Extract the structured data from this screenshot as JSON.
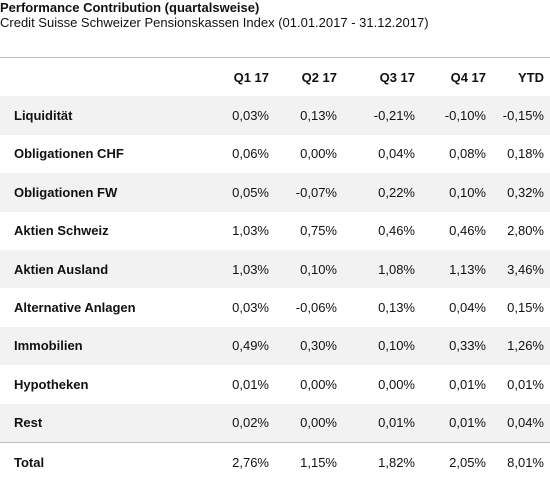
{
  "chart_data": {
    "type": "table",
    "title": "Performance Contribution (quartalsweise)",
    "subtitle": "Credit Suisse Schweizer Pensionskassen Index (01.01.2017 - 31.12.2017)",
    "columns": [
      "Q1 17",
      "Q2 17",
      "Q3 17",
      "Q4 17",
      "YTD"
    ],
    "rows": [
      {
        "label": "Liquidität",
        "values": [
          "0,03%",
          "0,13%",
          "-0,21%",
          "-0,10%",
          "-0,15%"
        ]
      },
      {
        "label": "Obligationen CHF",
        "values": [
          "0,06%",
          "0,00%",
          "0,04%",
          "0,08%",
          "0,18%"
        ]
      },
      {
        "label": "Obligationen FW",
        "values": [
          "0,05%",
          "-0,07%",
          "0,22%",
          "0,10%",
          "0,32%"
        ]
      },
      {
        "label": "Aktien Schweiz",
        "values": [
          "1,03%",
          "0,75%",
          "0,46%",
          "0,46%",
          "2,80%"
        ]
      },
      {
        "label": "Aktien Ausland",
        "values": [
          "1,03%",
          "0,10%",
          "1,08%",
          "1,13%",
          "3,46%"
        ]
      },
      {
        "label": "Alternative Anlagen",
        "values": [
          "0,03%",
          "-0,06%",
          "0,13%",
          "0,04%",
          "0,15%"
        ]
      },
      {
        "label": "Immobilien",
        "values": [
          "0,49%",
          "0,30%",
          "0,10%",
          "0,33%",
          "1,26%"
        ]
      },
      {
        "label": "Hypotheken",
        "values": [
          "0,01%",
          "0,00%",
          "0,00%",
          "0,01%",
          "0,01%"
        ]
      },
      {
        "label": "Rest",
        "values": [
          "0,02%",
          "0,00%",
          "0,01%",
          "0,01%",
          "0,04%"
        ]
      },
      {
        "label": "Total",
        "values": [
          "2,76%",
          "1,15%",
          "1,82%",
          "2,05%",
          "8,01%"
        ]
      }
    ],
    "band_color": "#f2f2f2",
    "rule_color": "#bdbdbd"
  }
}
